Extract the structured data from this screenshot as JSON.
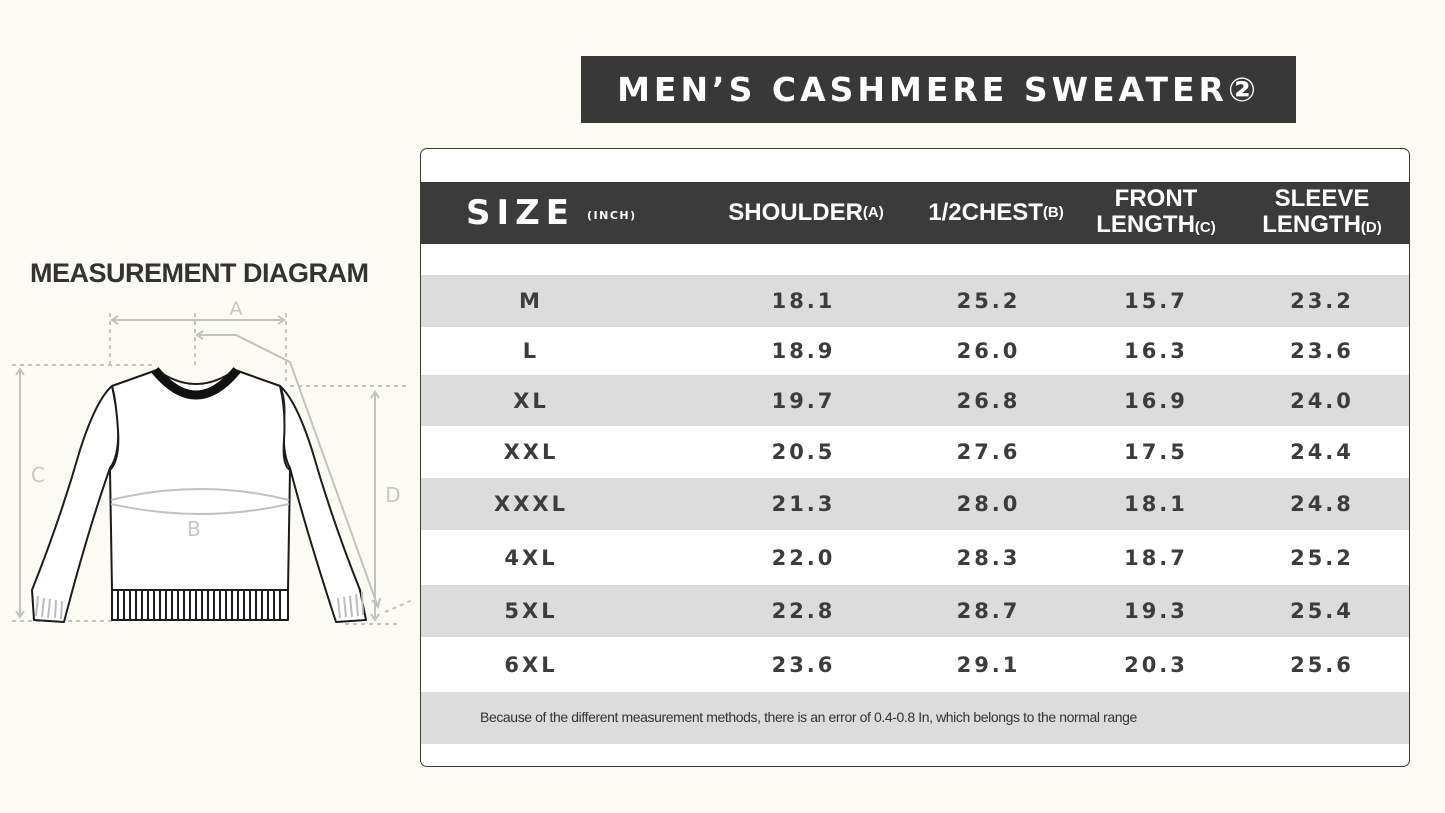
{
  "title": "MEN’S CASHMERE SWEATER②",
  "diagram": {
    "title": "MEASUREMENT DIAGRAM",
    "labels": {
      "a": "A",
      "b": "B",
      "c": "C",
      "d": "D"
    }
  },
  "table": {
    "headers": {
      "size": "SIZE",
      "unit": "(INCH)",
      "shoulder": "SHOULDER",
      "shoulder_sub": "(A)",
      "chest": "1/2CHEST",
      "chest_sub": "(B)",
      "front_line1": "FRONT",
      "front_line2": "LENGTH",
      "front_sub": "(C)",
      "sleeve_line1": "SLEEVE",
      "sleeve_line2": "LENGTH",
      "sleeve_sub": "(D)"
    },
    "rows": [
      {
        "size": "M",
        "shoulder": "18.1",
        "chest": "25.2",
        "front": "15.7",
        "sleeve": "23.2"
      },
      {
        "size": "L",
        "shoulder": "18.9",
        "chest": "26.0",
        "front": "16.3",
        "sleeve": "23.6"
      },
      {
        "size": "XL",
        "shoulder": "19.7",
        "chest": "26.8",
        "front": "16.9",
        "sleeve": "24.0"
      },
      {
        "size": "XXL",
        "shoulder": "20.5",
        "chest": "27.6",
        "front": "17.5",
        "sleeve": "24.4"
      },
      {
        "size": "XXXL",
        "shoulder": "21.3",
        "chest": "28.0",
        "front": "18.1",
        "sleeve": "24.8"
      },
      {
        "size": "4XL",
        "shoulder": "22.0",
        "chest": "28.3",
        "front": "18.7",
        "sleeve": "25.2"
      },
      {
        "size": "5XL",
        "shoulder": "22.8",
        "chest": "28.7",
        "front": "19.3",
        "sleeve": "25.4"
      },
      {
        "size": "6XL",
        "shoulder": "23.6",
        "chest": "29.1",
        "front": "20.3",
        "sleeve": "25.6"
      }
    ],
    "note": "Because of the different measurement methods, there is an error of 0.4-0.8 In, which belongs to the normal range"
  }
}
